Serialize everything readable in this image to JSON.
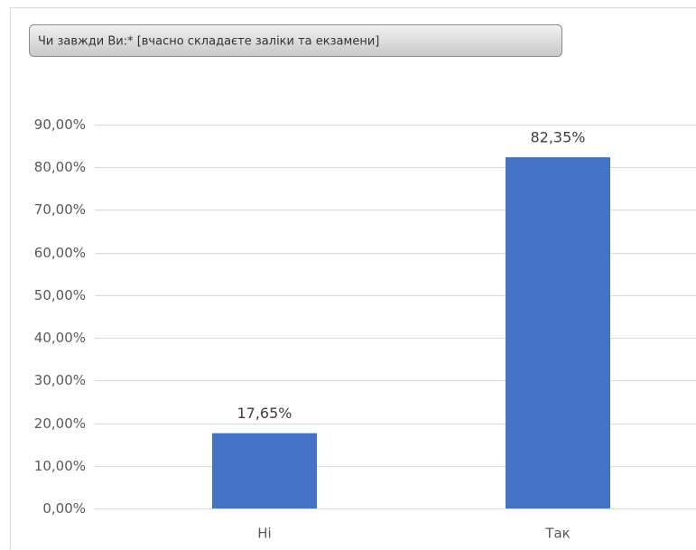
{
  "chart_data": {
    "type": "bar",
    "title": "Чи завжди Ви:* [вчасно складаєте заліки та екзамени]",
    "categories": [
      "Ні",
      "Так"
    ],
    "values": [
      17.65,
      82.35
    ],
    "value_labels": [
      "17,65%",
      "82,35%"
    ],
    "color": "#4472c4",
    "ylim": [
      0,
      90
    ],
    "yticks": [
      {
        "value": 0,
        "label": "0,00%"
      },
      {
        "value": 10,
        "label": "10,00%"
      },
      {
        "value": 20,
        "label": "20,00%"
      },
      {
        "value": 30,
        "label": "30,00%"
      },
      {
        "value": 40,
        "label": "40,00%"
      },
      {
        "value": 50,
        "label": "50,00%"
      },
      {
        "value": 60,
        "label": "60,00%"
      },
      {
        "value": 70,
        "label": "70,00%"
      },
      {
        "value": 80,
        "label": "80,00%"
      },
      {
        "value": 90,
        "label": "90,00%"
      }
    ],
    "grid": true
  }
}
